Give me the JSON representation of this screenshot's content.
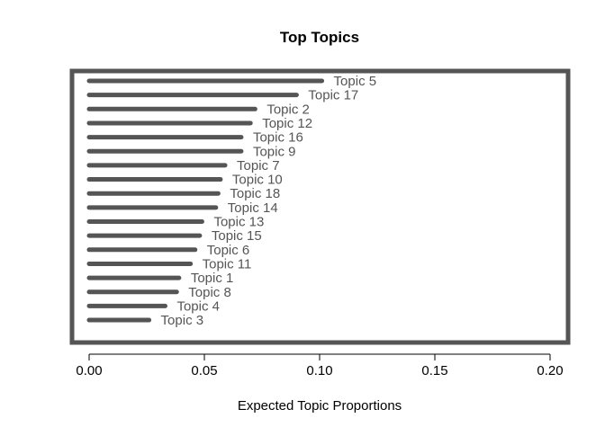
{
  "chart_data": {
    "type": "bar",
    "orientation": "horizontal",
    "title": "Top Topics",
    "xlabel": "Expected Topic Proportions",
    "ylabel": "",
    "xlim": [
      0,
      0.2
    ],
    "xticks": [
      0.0,
      0.05,
      0.1,
      0.15,
      0.2
    ],
    "xtick_labels": [
      "0.00",
      "0.05",
      "0.10",
      "0.15",
      "0.20"
    ],
    "grid": false,
    "legend": "none",
    "bar_color": "#555555",
    "categories": [
      "Topic 5",
      "Topic 17",
      "Topic 2",
      "Topic 12",
      "Topic 16",
      "Topic 9",
      "Topic 7",
      "Topic 10",
      "Topic 18",
      "Topic 14",
      "Topic 13",
      "Topic 15",
      "Topic 6",
      "Topic 11",
      "Topic 1",
      "Topic 8",
      "Topic 4",
      "Topic 3"
    ],
    "values": [
      0.101,
      0.09,
      0.072,
      0.07,
      0.066,
      0.066,
      0.059,
      0.057,
      0.056,
      0.055,
      0.049,
      0.048,
      0.046,
      0.044,
      0.039,
      0.038,
      0.033,
      0.026
    ]
  }
}
